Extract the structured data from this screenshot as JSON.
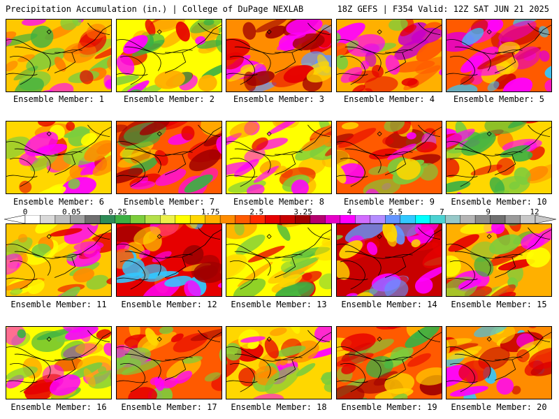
{
  "header": {
    "left": "Precipitation Accumulation (in.) | College of DuPage NEXLAB",
    "right": "18Z GEFS | F354 Valid: 12Z SAT JUN 21 2025"
  },
  "colorbar": {
    "tick_labels": [
      "0",
      "0.05",
      "0.25",
      "1",
      "1.75",
      "2.5",
      "3.25",
      "4",
      "5.5",
      "7",
      "9",
      "12"
    ],
    "colors": [
      "#ffffff",
      "#d9d9d9",
      "#bdbdbd",
      "#9e9e9e",
      "#6f6f6f",
      "#2e8b57",
      "#3cb043",
      "#7ccd3c",
      "#b4e04a",
      "#ecf04a",
      "#ffff00",
      "#ffd700",
      "#ffb000",
      "#ff8c00",
      "#ff5a00",
      "#ff2a00",
      "#e60000",
      "#c80000",
      "#a00000",
      "#b4006e",
      "#e600c8",
      "#ff00ff",
      "#d26cff",
      "#b48cff",
      "#6495ff",
      "#32c8ff",
      "#00ffff",
      "#4ad2d2",
      "#96c8c8",
      "#b4b4b4",
      "#8c8c8c",
      "#707070",
      "#9a9a9a",
      "#c8c8c8"
    ]
  },
  "panels": [
    {
      "label": "Ensemble Member:",
      "number": "1",
      "palette": [
        "#ffc800",
        "#ff7800",
        "#e60000",
        "#3cb043",
        "#7ccd3c",
        "#ff00ff"
      ]
    },
    {
      "label": "Ensemble Member:",
      "number": "2",
      "palette": [
        "#ffff00",
        "#ffb000",
        "#3cb043",
        "#7ccd3c",
        "#e60000",
        "#ff00ff"
      ]
    },
    {
      "label": "Ensemble Member:",
      "number": "3",
      "palette": [
        "#ff8c00",
        "#e60000",
        "#ffd700",
        "#a00000",
        "#ff00ff",
        "#6495ff"
      ]
    },
    {
      "label": "Ensemble Member:",
      "number": "4",
      "palette": [
        "#ffb000",
        "#e60000",
        "#ff00ff",
        "#7ccd3c",
        "#ff5a00",
        "#c800c8"
      ]
    },
    {
      "label": "Ensemble Member:",
      "number": "5",
      "palette": [
        "#ff5a00",
        "#ff00ff",
        "#c80000",
        "#ffd700",
        "#32c8ff",
        "#e600c8"
      ]
    },
    {
      "label": "Ensemble Member:",
      "number": "6",
      "palette": [
        "#ffd700",
        "#ff8c00",
        "#e60000",
        "#7ccd3c",
        "#ffff00",
        "#ff00ff"
      ]
    },
    {
      "label": "Ensemble Member:",
      "number": "7",
      "palette": [
        "#ff5a00",
        "#e60000",
        "#3cb043",
        "#ffd700",
        "#a00000",
        "#ff00ff"
      ]
    },
    {
      "label": "Ensemble Member:",
      "number": "8",
      "palette": [
        "#ffff00",
        "#ffb000",
        "#e60000",
        "#7ccd3c",
        "#ff00ff",
        "#ff8c00"
      ]
    },
    {
      "label": "Ensemble Member:",
      "number": "9",
      "palette": [
        "#ff5a00",
        "#e60000",
        "#ffd700",
        "#7ccd3c",
        "#a00000",
        "#ff00ff"
      ]
    },
    {
      "label": "Ensemble Member:",
      "number": "10",
      "palette": [
        "#ffd700",
        "#3cb043",
        "#7ccd3c",
        "#e60000",
        "#ff8c00",
        "#ff00ff"
      ]
    },
    {
      "label": "Ensemble Member:",
      "number": "11",
      "palette": [
        "#ffc800",
        "#ff8c00",
        "#e60000",
        "#7ccd3c",
        "#ffff00",
        "#ff00ff"
      ]
    },
    {
      "label": "Ensemble Member:",
      "number": "12",
      "palette": [
        "#e60000",
        "#a00000",
        "#ff00ff",
        "#ff5a00",
        "#32c8ff",
        "#ffd700"
      ]
    },
    {
      "label": "Ensemble Member:",
      "number": "13",
      "palette": [
        "#ffff00",
        "#3cb043",
        "#ffb000",
        "#7ccd3c",
        "#e60000",
        "#ffd700"
      ]
    },
    {
      "label": "Ensemble Member:",
      "number": "14",
      "palette": [
        "#c80000",
        "#ff00ff",
        "#e60000",
        "#7ccd3c",
        "#6495ff",
        "#ffd700"
      ]
    },
    {
      "label": "Ensemble Member:",
      "number": "15",
      "palette": [
        "#ffb000",
        "#e60000",
        "#7ccd3c",
        "#ffff00",
        "#3cb043",
        "#ff00ff"
      ]
    },
    {
      "label": "Ensemble Member:",
      "number": "16",
      "palette": [
        "#ffff00",
        "#7ccd3c",
        "#3cb043",
        "#e60000",
        "#ffb000",
        "#ff00ff"
      ]
    },
    {
      "label": "Ensemble Member:",
      "number": "17",
      "palette": [
        "#ff5a00",
        "#e60000",
        "#a00000",
        "#ffd700",
        "#ff00ff",
        "#7ccd3c"
      ]
    },
    {
      "label": "Ensemble Member:",
      "number": "18",
      "palette": [
        "#ffd700",
        "#ff8c00",
        "#7ccd3c",
        "#e60000",
        "#ff00ff",
        "#ffff00"
      ]
    },
    {
      "label": "Ensemble Member:",
      "number": "19",
      "palette": [
        "#ff5a00",
        "#e60000",
        "#3cb043",
        "#7ccd3c",
        "#ffd700",
        "#a00000"
      ]
    },
    {
      "label": "Ensemble Member:",
      "number": "20",
      "palette": [
        "#ff8c00",
        "#e60000",
        "#ff00ff",
        "#32c8ff",
        "#ffd700",
        "#c80000"
      ]
    }
  ]
}
